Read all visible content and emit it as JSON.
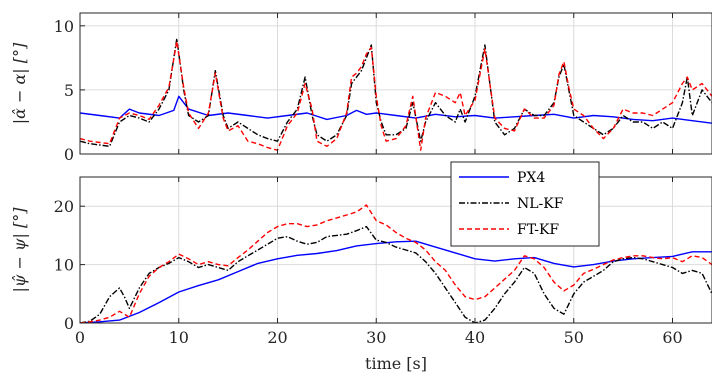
{
  "chart_data": [
    {
      "type": "line",
      "ylabel": "|α̂ − α| [°]",
      "xlim": [
        0,
        64
      ],
      "ylim": [
        0,
        11
      ],
      "xticks": [
        0,
        10,
        20,
        30,
        40,
        50,
        60
      ],
      "yticks": [
        0,
        5,
        10
      ],
      "grid": true,
      "series": [
        {
          "name": "PX4",
          "color": "#0000ff",
          "style": "solid",
          "x": [
            0,
            2,
            4,
            5,
            6,
            8,
            9.5,
            10,
            11,
            13,
            15,
            17,
            19,
            21,
            23,
            25,
            27,
            28,
            29,
            30,
            32,
            34,
            36,
            38,
            40,
            42,
            44,
            46,
            48,
            50,
            52,
            54,
            56,
            58,
            60,
            62,
            64
          ],
          "y": [
            3.2,
            3.0,
            2.8,
            3.5,
            3.2,
            3.0,
            3.4,
            4.5,
            3.5,
            3.0,
            3.2,
            3.0,
            2.8,
            3.0,
            3.2,
            2.7,
            3.0,
            3.4,
            3.1,
            3.2,
            3.0,
            2.8,
            3.1,
            2.9,
            3.0,
            2.8,
            2.9,
            3.0,
            3.1,
            2.8,
            3.0,
            2.9,
            2.7,
            2.6,
            2.8,
            2.6,
            2.4
          ]
        },
        {
          "name": "NL-KF",
          "color": "#000000",
          "style": "dashdot",
          "x": [
            0,
            1,
            2,
            3,
            4,
            5,
            6,
            7,
            8,
            9,
            9.8,
            10.5,
            11,
            12,
            13,
            13.7,
            14.5,
            15,
            16,
            17,
            18,
            19,
            20,
            21,
            22,
            22.8,
            23.5,
            24,
            25,
            26,
            27,
            27.5,
            28,
            28.5,
            29,
            29.5,
            30,
            30.5,
            31,
            32,
            33,
            33.7,
            34.5,
            35,
            36,
            37,
            38,
            38.5,
            39,
            40,
            41,
            42,
            43,
            44,
            45,
            46,
            47,
            48,
            48.5,
            49,
            49.5,
            50,
            51,
            52,
            53,
            54,
            55,
            56,
            57,
            58,
            59,
            60,
            61,
            61.5,
            62,
            63,
            64
          ],
          "y": [
            1.0,
            0.8,
            0.7,
            0.6,
            2.5,
            3.0,
            2.8,
            2.5,
            3.5,
            5.0,
            9.0,
            5.0,
            3.0,
            2.5,
            3.0,
            6.5,
            3.0,
            2.0,
            2.5,
            2.0,
            1.5,
            1.2,
            1.0,
            2.5,
            3.5,
            6.0,
            3.0,
            1.5,
            1.0,
            1.5,
            3.0,
            5.5,
            6.0,
            6.5,
            7.5,
            8.5,
            4.0,
            2.5,
            1.5,
            1.5,
            2.0,
            4.0,
            1.0,
            2.5,
            4.0,
            3.0,
            2.5,
            3.5,
            2.5,
            4.5,
            8.5,
            2.5,
            1.5,
            2.0,
            3.5,
            3.0,
            3.0,
            4.0,
            6.0,
            7.0,
            5.0,
            3.0,
            2.5,
            2.0,
            1.5,
            2.0,
            3.0,
            2.5,
            2.5,
            2.0,
            2.5,
            2.0,
            4.0,
            6.0,
            3.0,
            5.0,
            4.0
          ]
        },
        {
          "name": "FT-KF",
          "color": "#ff0000",
          "style": "dashed",
          "x": [
            0,
            1,
            2,
            3,
            4,
            5,
            6,
            7,
            8,
            9,
            9.8,
            10.5,
            11,
            12,
            13,
            13.7,
            14.5,
            15,
            16,
            17,
            18,
            19,
            20,
            21,
            22,
            22.8,
            23.5,
            24,
            25,
            26,
            27,
            27.5,
            28,
            28.5,
            29,
            29.5,
            30,
            30.5,
            31,
            32,
            33,
            33.7,
            34.5,
            35,
            36,
            37,
            38,
            38.5,
            39,
            40,
            41,
            42,
            43,
            44,
            45,
            46,
            47,
            48,
            48.5,
            49,
            49.5,
            50,
            51,
            52,
            53,
            54,
            55,
            56,
            57,
            58,
            59,
            60,
            61,
            61.5,
            62,
            63,
            64
          ],
          "y": [
            1.2,
            1.0,
            0.9,
            0.8,
            2.8,
            3.2,
            3.0,
            2.7,
            3.8,
            5.2,
            8.8,
            5.2,
            3.2,
            2.0,
            3.2,
            6.3,
            2.8,
            1.8,
            2.2,
            1.0,
            0.8,
            0.5,
            0.3,
            2.2,
            3.2,
            5.5,
            3.5,
            1.0,
            0.6,
            1.2,
            3.2,
            6.0,
            6.3,
            6.8,
            7.8,
            8.3,
            4.5,
            2.2,
            1.0,
            1.2,
            2.2,
            4.5,
            0.3,
            2.8,
            4.8,
            4.5,
            4.0,
            4.8,
            3.0,
            4.2,
            8.2,
            2.8,
            2.0,
            1.8,
            3.5,
            2.8,
            2.8,
            3.8,
            6.2,
            7.2,
            5.2,
            3.5,
            3.0,
            2.0,
            1.2,
            2.0,
            3.5,
            3.2,
            3.2,
            3.0,
            3.5,
            4.0,
            5.5,
            6.0,
            5.0,
            5.5,
            4.5
          ]
        }
      ]
    },
    {
      "type": "line",
      "xlabel": "time [s]",
      "ylabel": "|ψ̂ − ψ| [°]",
      "xlim": [
        0,
        64
      ],
      "ylim": [
        0,
        25
      ],
      "xticks": [
        0,
        10,
        20,
        30,
        40,
        50,
        60
      ],
      "yticks": [
        0,
        10,
        20
      ],
      "grid": true,
      "legend_position": "top-right",
      "series": [
        {
          "name": "PX4",
          "color": "#0000ff",
          "style": "solid",
          "x": [
            0,
            2,
            4,
            6,
            8,
            10,
            12,
            14,
            16,
            18,
            20,
            22,
            24,
            26,
            28,
            30,
            32,
            34,
            36,
            38,
            40,
            42,
            44,
            46,
            48,
            50,
            52,
            54,
            56,
            58,
            60,
            62,
            64
          ],
          "y": [
            0,
            0.2,
            0.5,
            1.8,
            3.5,
            5.3,
            6.4,
            7.4,
            8.8,
            10.2,
            11.0,
            11.6,
            11.9,
            12.4,
            13.2,
            13.6,
            13.9,
            14.0,
            13.0,
            12.0,
            11.0,
            10.6,
            11.0,
            11.2,
            10.2,
            9.6,
            10.0,
            10.6,
            11.0,
            11.2,
            11.4,
            12.2,
            12.2
          ]
        },
        {
          "name": "NL-KF",
          "color": "#000000",
          "style": "dashdot",
          "x": [
            0,
            1,
            2,
            3,
            4,
            4.5,
            5,
            6,
            7,
            8,
            9,
            10,
            11,
            12,
            13,
            14,
            15,
            16,
            17,
            18,
            19,
            20,
            21,
            22,
            23,
            24,
            25,
            26,
            27,
            28,
            29,
            30,
            31,
            32,
            33,
            34,
            35,
            36,
            37,
            38,
            39,
            40,
            41,
            42,
            43,
            44,
            45,
            46,
            47,
            48,
            49,
            50,
            51,
            52,
            53,
            54,
            55,
            56,
            57,
            58,
            59,
            60,
            61,
            62,
            63,
            64
          ],
          "y": [
            0,
            0.3,
            1.5,
            4.5,
            6.0,
            4.5,
            2.5,
            6.0,
            8.5,
            9.5,
            10.2,
            11.2,
            10.5,
            9.5,
            10.0,
            9.5,
            9.0,
            10.5,
            11.5,
            12.5,
            13.5,
            14.5,
            14.8,
            14.0,
            13.5,
            13.8,
            14.8,
            15.0,
            15.2,
            15.8,
            16.5,
            14.2,
            13.8,
            13.0,
            12.5,
            12.0,
            10.5,
            8.5,
            6.0,
            3.5,
            1.0,
            0.0,
            0.5,
            2.5,
            5.0,
            7.0,
            9.5,
            8.5,
            5.0,
            2.5,
            1.5,
            5.0,
            7.0,
            8.0,
            9.0,
            10.5,
            11.0,
            11.2,
            11.0,
            10.5,
            10.0,
            9.5,
            8.5,
            9.0,
            8.5,
            5.0
          ]
        },
        {
          "name": "FT-KF",
          "color": "#ff0000",
          "style": "dashed",
          "x": [
            0,
            1,
            2,
            3,
            4,
            4.5,
            5,
            6,
            7,
            8,
            9,
            10,
            11,
            12,
            13,
            14,
            15,
            16,
            17,
            18,
            19,
            20,
            21,
            22,
            23,
            24,
            25,
            26,
            27,
            28,
            29,
            30,
            31,
            32,
            33,
            34,
            35,
            36,
            37,
            38,
            39,
            40,
            41,
            42,
            43,
            44,
            45,
            46,
            47,
            48,
            49,
            50,
            51,
            52,
            53,
            54,
            55,
            56,
            57,
            58,
            59,
            60,
            61,
            62,
            63,
            64
          ],
          "y": [
            0,
            0.2,
            0.5,
            1.0,
            2.0,
            1.5,
            1.0,
            5.0,
            8.0,
            9.5,
            10.5,
            11.8,
            11.0,
            10.0,
            10.5,
            10.0,
            9.8,
            11.2,
            12.5,
            14.0,
            15.5,
            16.5,
            17.0,
            17.0,
            16.5,
            16.8,
            17.5,
            18.0,
            18.5,
            19.0,
            20.2,
            17.5,
            16.8,
            15.5,
            14.5,
            13.8,
            12.5,
            10.5,
            9.0,
            6.5,
            4.5,
            4.0,
            4.5,
            6.0,
            7.5,
            9.0,
            11.5,
            11.0,
            9.5,
            7.0,
            5.5,
            6.5,
            8.5,
            9.2,
            10.0,
            10.8,
            11.2,
            11.5,
            11.5,
            11.2,
            11.0,
            11.2,
            10.5,
            11.5,
            11.2,
            10.0
          ]
        }
      ]
    }
  ]
}
